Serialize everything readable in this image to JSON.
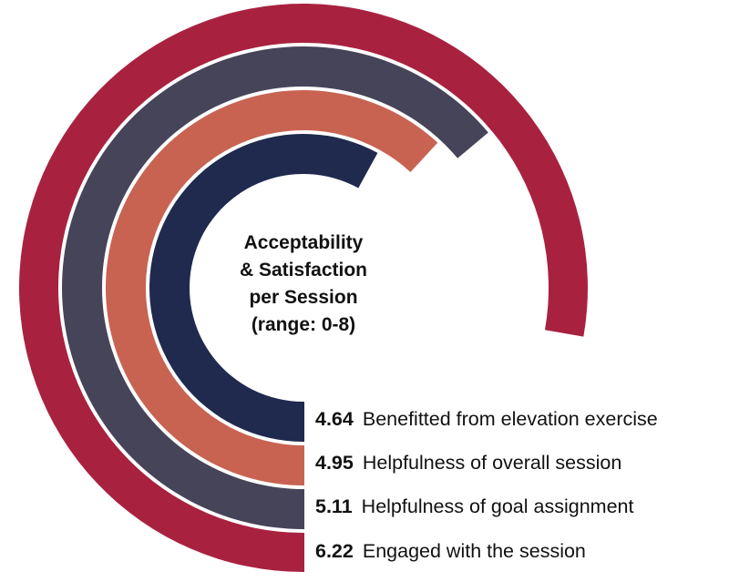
{
  "chart_data": {
    "type": "radial-bar",
    "title_lines": [
      "Acceptability",
      "& Satisfaction",
      "per Session",
      "(range: 0-8)"
    ],
    "range": [
      0,
      8
    ],
    "series": [
      {
        "name": "Benefitted from elevation exercise",
        "value": 4.64,
        "value_label": "4.64",
        "color": "#1f2a4e"
      },
      {
        "name": "Helpfulness of overall session",
        "value": 4.95,
        "value_label": "4.95",
        "color": "#c86352"
      },
      {
        "name": "Helpfulness of goal assignment",
        "value": 5.11,
        "value_label": "5.11",
        "color": "#464459"
      },
      {
        "name": "Engaged with the session",
        "value": 6.22,
        "value_label": "6.22",
        "color": "#a82240"
      }
    ]
  }
}
